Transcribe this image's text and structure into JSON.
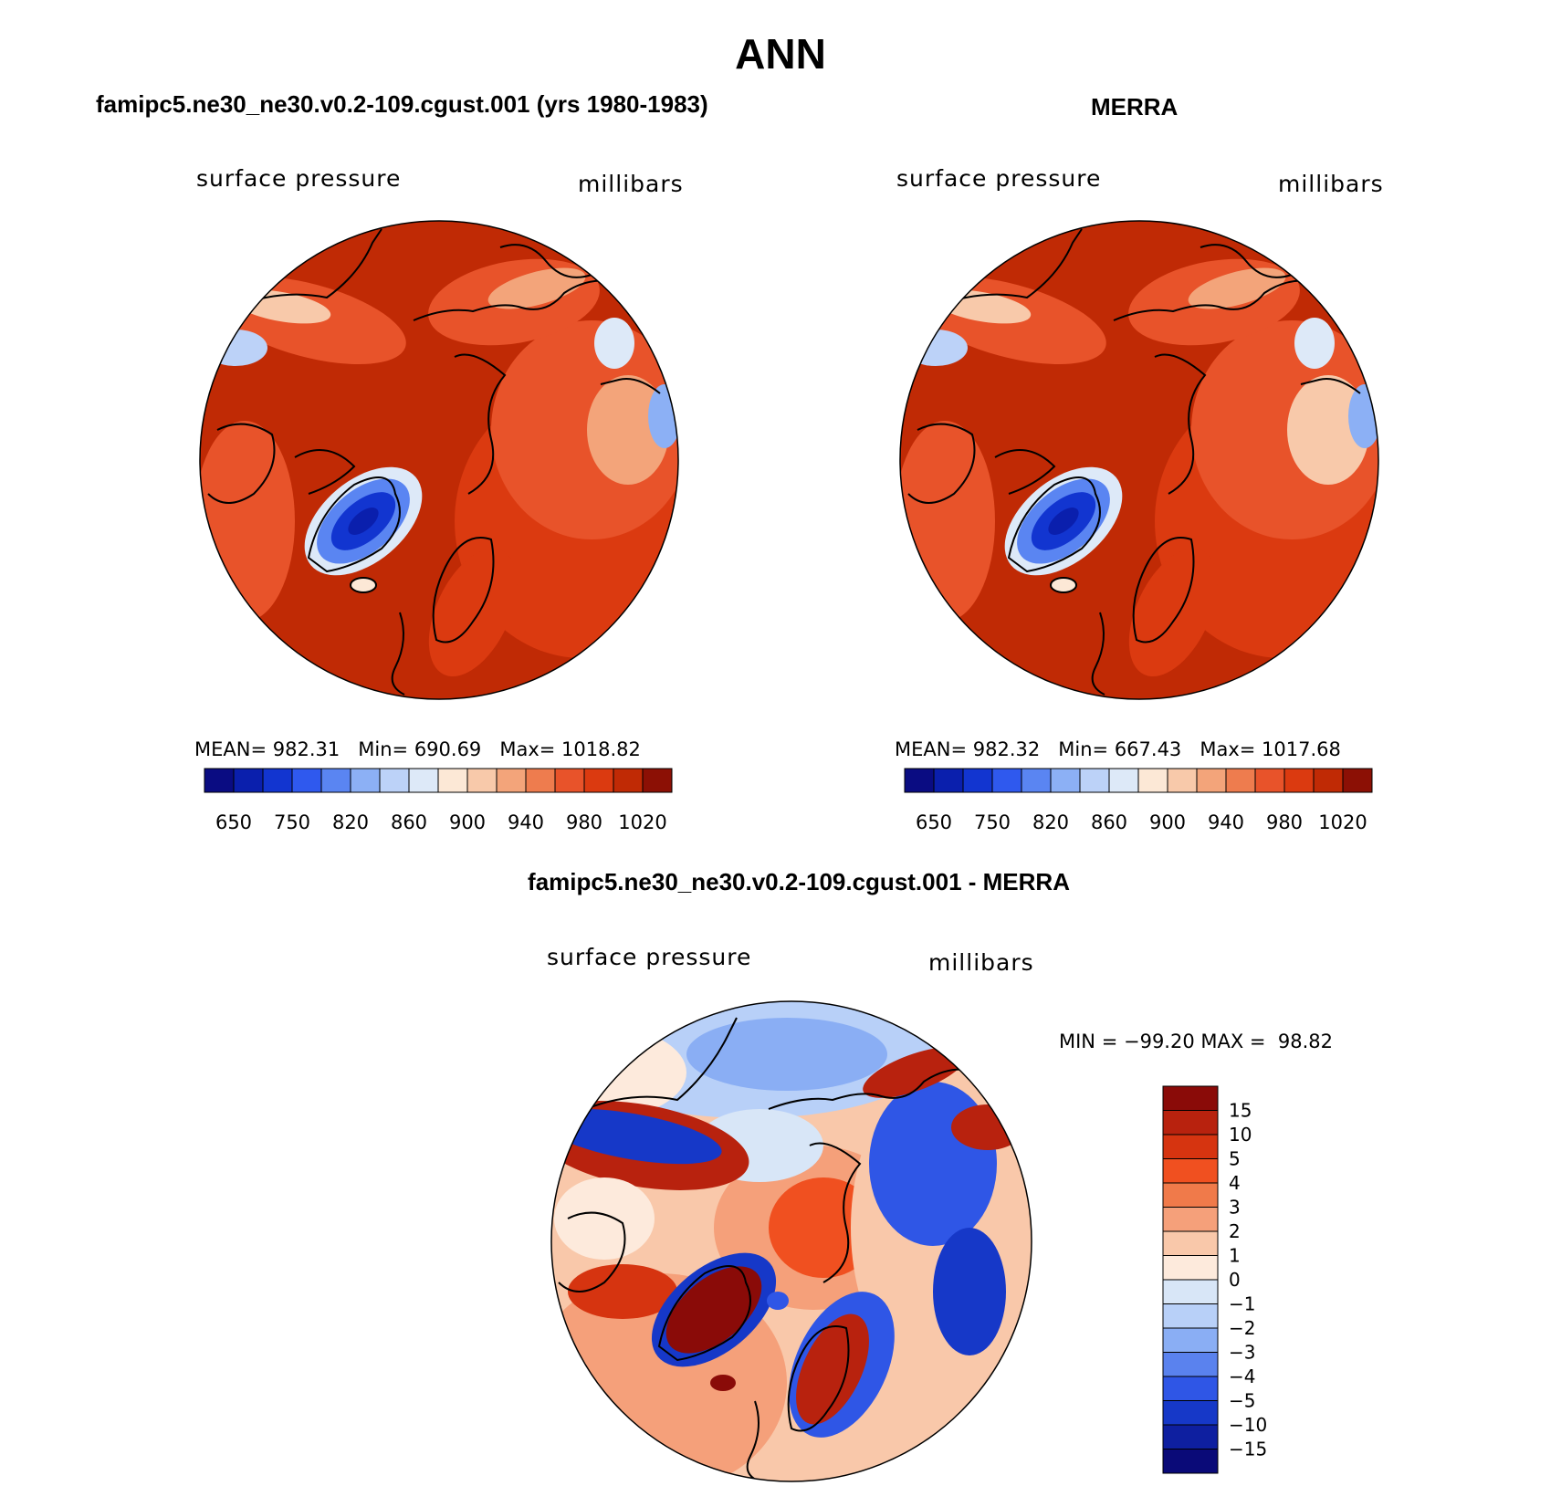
{
  "main_title": "ANN",
  "panels": [
    {
      "title": "famipc5.ne30_ne30.v0.2-109.cgust.001 (yrs 1980-1983)",
      "variable": "surface pressure",
      "units": "millibars",
      "stats": {
        "mean_label": "MEAN=",
        "mean": "982.31",
        "min_label": "Min=",
        "min": "690.69",
        "max_label": "Max=",
        "max": "1018.82"
      }
    },
    {
      "title": "MERRA",
      "variable": "surface pressure",
      "units": "millibars",
      "stats": {
        "mean_label": "MEAN=",
        "mean": "982.32",
        "min_label": "Min=",
        "min": "667.43",
        "max_label": "Max=",
        "max": "1017.68"
      }
    },
    {
      "title": "famipc5.ne30_ne30.v0.2-109.cgust.001 - MERRA",
      "variable": "surface pressure",
      "units": "millibars",
      "stats": {
        "min_label": "MIN =",
        "min": "−99.20",
        "max_label": "MAX =",
        "max": "98.82"
      }
    }
  ],
  "chart_data": [
    {
      "type": "heatmap",
      "projection": "north polar stereographic",
      "title": "famipc5.ne30_ne30.v0.2-109.cgust.001 (yrs 1980-1983)",
      "variable": "surface pressure",
      "units": "millibars",
      "mean": 982.31,
      "min": 690.69,
      "max": 1018.82,
      "colorbar": {
        "orientation": "horizontal",
        "tick_labels": [
          "650",
          "750",
          "820",
          "860",
          "900",
          "940",
          "980",
          "1020"
        ],
        "colors": [
          "#0a0c82",
          "#0a1fad",
          "#1235d0",
          "#2f59ee",
          "#5a85f2",
          "#8cb0f5",
          "#bcd2f8",
          "#dde9f8",
          "#fce8d6",
          "#f8c9aa",
          "#f3a47a",
          "#ee7c4e",
          "#e8532a",
          "#db3a10",
          "#c02a05",
          "#8c1005"
        ]
      }
    },
    {
      "type": "heatmap",
      "projection": "north polar stereographic",
      "title": "MERRA",
      "variable": "surface pressure",
      "units": "millibars",
      "mean": 982.32,
      "min": 667.43,
      "max": 1017.68,
      "colorbar": {
        "orientation": "horizontal",
        "tick_labels": [
          "650",
          "750",
          "820",
          "860",
          "900",
          "940",
          "980",
          "1020"
        ],
        "colors": [
          "#0a0c82",
          "#0a1fad",
          "#1235d0",
          "#2f59ee",
          "#5a85f2",
          "#8cb0f5",
          "#bcd2f8",
          "#dde9f8",
          "#fce8d6",
          "#f8c9aa",
          "#f3a47a",
          "#ee7c4e",
          "#e8532a",
          "#db3a10",
          "#c02a05",
          "#8c1005"
        ]
      }
    },
    {
      "type": "heatmap",
      "projection": "north polar stereographic",
      "title": "famipc5.ne30_ne30.v0.2-109.cgust.001 - MERRA",
      "variable": "surface pressure",
      "units": "millibars",
      "min": -99.2,
      "max": 98.82,
      "colorbar": {
        "orientation": "vertical",
        "tick_labels": [
          "15",
          "10",
          "5",
          "4",
          "3",
          "2",
          "1",
          "0",
          "−1",
          "−2",
          "−3",
          "−4",
          "−5",
          "−10",
          "−15"
        ],
        "colors": [
          "#8a0b08",
          "#b8220e",
          "#d63410",
          "#f05020",
          "#f07a4a",
          "#f5a07a",
          "#f9c8aa",
          "#fdeadc",
          "#d8e6f7",
          "#b8d0f8",
          "#8aaef4",
          "#5a82ee",
          "#2f56e6",
          "#1638c8",
          "#0e1fa0",
          "#0a0a78"
        ]
      }
    }
  ]
}
